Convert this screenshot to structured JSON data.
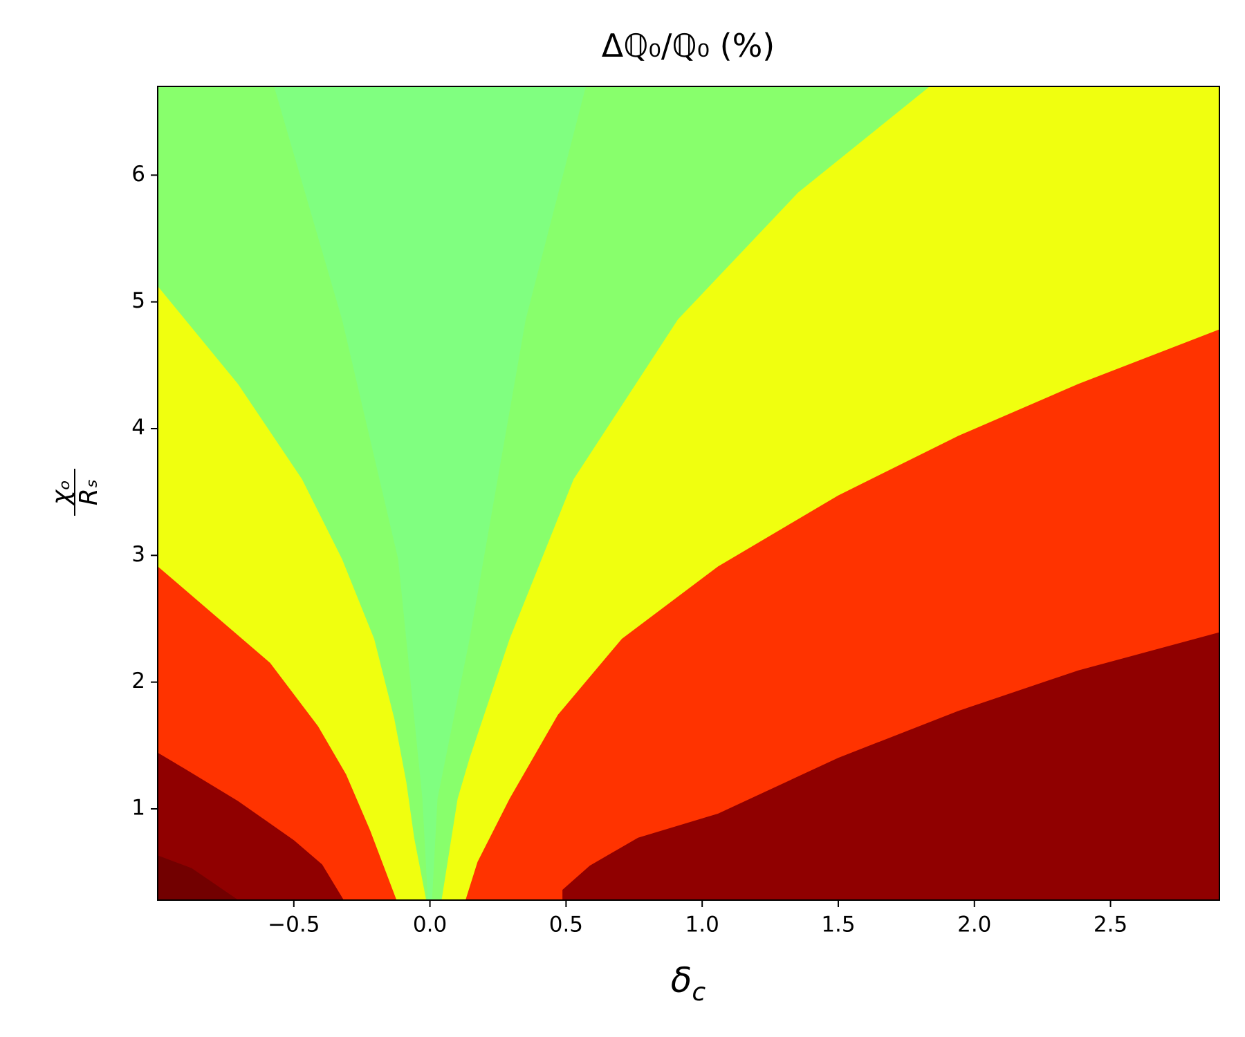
{
  "chart_data": {
    "type": "contourf",
    "title": "Δℚ₀/ℚ₀ (%)",
    "x_label": {
      "base": "δ",
      "sub": "c"
    },
    "y_label": {
      "numerator": "χₒ",
      "denominator": "Rₛ"
    },
    "xlim": [
      -1.0,
      2.9
    ],
    "ylim": [
      0.28,
      6.7
    ],
    "xticks": [
      {
        "value": -0.5,
        "label": "−0.5"
      },
      {
        "value": 0,
        "label": "0.0"
      },
      0.5,
      {
        "value": 1,
        "label": "1.0"
      },
      1.5,
      {
        "value": 2,
        "label": "2.0"
      },
      2.5
    ],
    "yticks": [
      1,
      2,
      3,
      4,
      5,
      6
    ],
    "background": "#80ff80",
    "regions": [
      {
        "color": "#88ff6c",
        "x": [
          -1.0,
          -0.574,
          -0.324,
          -0.118,
          -0.029,
          -0.009,
          -1.0
        ],
        "y": [
          6.7,
          6.7,
          4.86,
          2.97,
          1.08,
          0.28,
          0.28
        ]
      },
      {
        "color": "#88ff6c",
        "x": [
          2.9,
          0.574,
          0.353,
          0.147,
          0.029,
          0.009,
          2.9
        ],
        "y": [
          6.7,
          6.7,
          4.86,
          2.34,
          1.08,
          0.28,
          0.28
        ]
      },
      {
        "color": "#f0ff0f",
        "x": [
          -1.0,
          -0.706,
          -0.471,
          -0.324,
          -0.206,
          -0.132,
          -0.088,
          -0.059,
          -0.015,
          -1.0
        ],
        "y": [
          5.12,
          4.35,
          3.6,
          2.97,
          2.34,
          1.71,
          1.21,
          0.77,
          0.28,
          0.28
        ]
      },
      {
        "color": "#f0ff0f",
        "x": [
          1.838,
          1.353,
          0.912,
          0.529,
          0.294,
          0.147,
          0.103,
          0.044,
          2.9,
          2.9
        ],
        "y": [
          6.7,
          5.86,
          4.86,
          3.6,
          2.34,
          1.4,
          1.08,
          0.28,
          0.28,
          6.7
        ]
      },
      {
        "color": "#ff3300",
        "x": [
          -1.0,
          -0.794,
          -0.588,
          -0.412,
          -0.309,
          -0.221,
          -0.124,
          -1.0
        ],
        "y": [
          2.91,
          2.53,
          2.15,
          1.65,
          1.27,
          0.83,
          0.28,
          0.28
        ]
      },
      {
        "color": "#ff3300",
        "x": [
          2.9,
          2.382,
          1.941,
          1.5,
          1.059,
          0.706,
          0.471,
          0.294,
          0.176,
          0.132,
          2.9
        ],
        "y": [
          4.78,
          4.35,
          3.94,
          3.47,
          2.91,
          2.34,
          1.74,
          1.08,
          0.58,
          0.28,
          0.28
        ]
      },
      {
        "color": "#900000",
        "x": [
          -1.0,
          -0.906,
          -0.706,
          -0.5,
          -0.397,
          -0.318,
          -1.0
        ],
        "y": [
          1.44,
          1.32,
          1.06,
          0.75,
          0.56,
          0.28,
          0.28
        ]
      },
      {
        "color": "#900000",
        "x": [
          2.9,
          2.382,
          1.941,
          1.5,
          1.059,
          0.765,
          0.588,
          0.488,
          0.488,
          2.9
        ],
        "y": [
          2.39,
          2.09,
          1.77,
          1.4,
          0.96,
          0.77,
          0.55,
          0.36,
          0.28,
          0.28
        ]
      },
      {
        "color": "#720000",
        "x": [
          -1.0,
          -0.876,
          -0.706,
          -1.0
        ],
        "y": [
          0.63,
          0.53,
          0.28,
          0.28
        ]
      }
    ]
  }
}
